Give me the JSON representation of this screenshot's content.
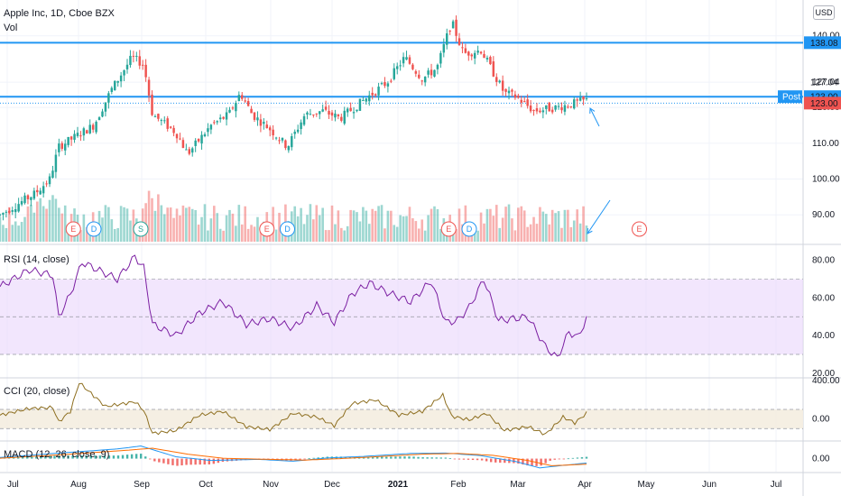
{
  "header": {
    "symbol_title": "Apple Inc, 1D, Cboe BZX",
    "volume_label": "Vol",
    "currency": "USD"
  },
  "panes": {
    "rsi_title": "RSI (14, close)",
    "cci_title": "CCI (20, close)",
    "macd_title": "MACD (12, 26, close, 9)"
  },
  "colors": {
    "up": "#26a69a",
    "down": "#ef5350",
    "level_line": "#2196f3",
    "rsi_line": "#7b1fa2",
    "rsi_band": "#e9d5fb",
    "cci_line": "#8d6e1f",
    "cci_band": "#f4ede0",
    "macd_line": "#2196f3",
    "signal_line": "#ff6d00",
    "last_price": "#ef5350"
  },
  "chart_data": {
    "type": "candlestick",
    "x_ticks": [
      "Jul",
      "Aug",
      "Sep",
      "Oct",
      "Nov",
      "Dec",
      "2021",
      "Feb",
      "Mar",
      "Apr",
      "May",
      "Jun",
      "Jul"
    ],
    "price_ticks": [
      "90.00",
      "100.00",
      "110.00",
      "120.00",
      "127.04",
      "140.00"
    ],
    "price_range": [
      82,
      150
    ],
    "level_lines": [
      138.08,
      123.0
    ],
    "price_tags": [
      {
        "label": "138.08",
        "value": 138.08,
        "kind": "level"
      },
      {
        "label": "127.04",
        "value": 127.04,
        "kind": "plain"
      },
      {
        "label": "123.00",
        "value": 123.0,
        "kind": "level"
      },
      {
        "label": "123.00",
        "value": 121.2,
        "kind": "last"
      }
    ],
    "post_label": "Post",
    "price_keyframes": [
      {
        "t": 0.0,
        "p": 90
      },
      {
        "t": 0.06,
        "p": 96
      },
      {
        "t": 0.085,
        "p": 100
      },
      {
        "t": 0.1,
        "p": 109
      },
      {
        "t": 0.13,
        "p": 112
      },
      {
        "t": 0.16,
        "p": 115
      },
      {
        "t": 0.19,
        "p": 125
      },
      {
        "t": 0.225,
        "p": 134
      },
      {
        "t": 0.245,
        "p": 132
      },
      {
        "t": 0.26,
        "p": 118
      },
      {
        "t": 0.3,
        "p": 113
      },
      {
        "t": 0.32,
        "p": 107
      },
      {
        "t": 0.36,
        "p": 115
      },
      {
        "t": 0.39,
        "p": 118
      },
      {
        "t": 0.41,
        "p": 124
      },
      {
        "t": 0.43,
        "p": 118
      },
      {
        "t": 0.46,
        "p": 114
      },
      {
        "t": 0.49,
        "p": 109
      },
      {
        "t": 0.52,
        "p": 118
      },
      {
        "t": 0.55,
        "p": 119
      },
      {
        "t": 0.58,
        "p": 117
      },
      {
        "t": 0.62,
        "p": 122
      },
      {
        "t": 0.66,
        "p": 127
      },
      {
        "t": 0.69,
        "p": 134
      },
      {
        "t": 0.72,
        "p": 128
      },
      {
        "t": 0.745,
        "p": 131
      },
      {
        "t": 0.77,
        "p": 144
      },
      {
        "t": 0.79,
        "p": 135
      },
      {
        "t": 0.82,
        "p": 136
      },
      {
        "t": 0.86,
        "p": 124
      },
      {
        "t": 0.88,
        "p": 123
      },
      {
        "t": 0.91,
        "p": 119
      },
      {
        "t": 0.95,
        "p": 120
      },
      {
        "t": 1.0,
        "p": 122
      }
    ],
    "earnings_events": [
      {
        "label": "E",
        "t": 0.125
      },
      {
        "label": "D",
        "t": 0.16
      },
      {
        "label": "S",
        "t": 0.24
      },
      {
        "label": "E",
        "t": 0.455
      },
      {
        "label": "D",
        "t": 0.49
      },
      {
        "label": "E",
        "t": 0.765
      },
      {
        "label": "D",
        "t": 0.8
      },
      {
        "label": "E",
        "t": 1.09
      }
    ],
    "rsi": {
      "ticks": [
        "80.00",
        "60.00",
        "40.00",
        "20.00"
      ],
      "range": [
        18,
        88
      ],
      "band": [
        30,
        70
      ],
      "keyframes": [
        {
          "t": 0.0,
          "v": 66
        },
        {
          "t": 0.05,
          "v": 75
        },
        {
          "t": 0.09,
          "v": 72
        },
        {
          "t": 0.1,
          "v": 50
        },
        {
          "t": 0.12,
          "v": 62
        },
        {
          "t": 0.14,
          "v": 79
        },
        {
          "t": 0.2,
          "v": 70
        },
        {
          "t": 0.23,
          "v": 82
        },
        {
          "t": 0.245,
          "v": 76
        },
        {
          "t": 0.26,
          "v": 46
        },
        {
          "t": 0.3,
          "v": 40
        },
        {
          "t": 0.34,
          "v": 52
        },
        {
          "t": 0.38,
          "v": 58
        },
        {
          "t": 0.42,
          "v": 46
        },
        {
          "t": 0.46,
          "v": 49
        },
        {
          "t": 0.5,
          "v": 44
        },
        {
          "t": 0.54,
          "v": 56
        },
        {
          "t": 0.57,
          "v": 47
        },
        {
          "t": 0.6,
          "v": 62
        },
        {
          "t": 0.63,
          "v": 68
        },
        {
          "t": 0.66,
          "v": 63
        },
        {
          "t": 0.7,
          "v": 58
        },
        {
          "t": 0.735,
          "v": 69
        },
        {
          "t": 0.76,
          "v": 47
        },
        {
          "t": 0.78,
          "v": 48
        },
        {
          "t": 0.8,
          "v": 55
        },
        {
          "t": 0.825,
          "v": 70
        },
        {
          "t": 0.85,
          "v": 48
        },
        {
          "t": 0.9,
          "v": 50
        },
        {
          "t": 0.93,
          "v": 34
        },
        {
          "t": 0.95,
          "v": 28
        },
        {
          "t": 0.97,
          "v": 42
        },
        {
          "t": 0.985,
          "v": 39
        },
        {
          "t": 1.0,
          "v": 49
        }
      ]
    },
    "cci": {
      "ticks": [
        "400.00",
        "0.00"
      ],
      "range": [
        -220,
        420
      ],
      "band": [
        -100,
        100
      ],
      "keyframes": [
        {
          "t": 0.0,
          "v": 40
        },
        {
          "t": 0.05,
          "v": 110
        },
        {
          "t": 0.09,
          "v": 120
        },
        {
          "t": 0.1,
          "v": -30
        },
        {
          "t": 0.12,
          "v": 80
        },
        {
          "t": 0.135,
          "v": 380
        },
        {
          "t": 0.18,
          "v": 130
        },
        {
          "t": 0.23,
          "v": 180
        },
        {
          "t": 0.245,
          "v": 90
        },
        {
          "t": 0.26,
          "v": -150
        },
        {
          "t": 0.3,
          "v": -120
        },
        {
          "t": 0.34,
          "v": 40
        },
        {
          "t": 0.38,
          "v": 80
        },
        {
          "t": 0.42,
          "v": -80
        },
        {
          "t": 0.46,
          "v": -110
        },
        {
          "t": 0.5,
          "v": 60
        },
        {
          "t": 0.54,
          "v": 20
        },
        {
          "t": 0.57,
          "v": -70
        },
        {
          "t": 0.6,
          "v": 160
        },
        {
          "t": 0.64,
          "v": 200
        },
        {
          "t": 0.68,
          "v": 40
        },
        {
          "t": 0.72,
          "v": 80
        },
        {
          "t": 0.755,
          "v": 250
        },
        {
          "t": 0.77,
          "v": 30
        },
        {
          "t": 0.8,
          "v": -10
        },
        {
          "t": 0.83,
          "v": 60
        },
        {
          "t": 0.86,
          "v": -120
        },
        {
          "t": 0.9,
          "v": -80
        },
        {
          "t": 0.93,
          "v": -160
        },
        {
          "t": 0.96,
          "v": 20
        },
        {
          "t": 0.98,
          "v": -40
        },
        {
          "t": 1.0,
          "v": 60
        }
      ]
    },
    "macd": {
      "ticks": [
        "0.00"
      ],
      "range": [
        -3.5,
        4.5
      ],
      "macd_keyframes": [
        {
          "t": 0.0,
          "v": 0.3
        },
        {
          "t": 0.1,
          "v": 1.5
        },
        {
          "t": 0.2,
          "v": 2.6
        },
        {
          "t": 0.24,
          "v": 3.4
        },
        {
          "t": 0.3,
          "v": 0.5
        },
        {
          "t": 0.36,
          "v": -0.5
        },
        {
          "t": 0.44,
          "v": -0.2
        },
        {
          "t": 0.5,
          "v": -0.7
        },
        {
          "t": 0.56,
          "v": 0.2
        },
        {
          "t": 0.62,
          "v": 0.6
        },
        {
          "t": 0.7,
          "v": 1.4
        },
        {
          "t": 0.76,
          "v": 1.5
        },
        {
          "t": 0.82,
          "v": 0.8
        },
        {
          "t": 0.88,
          "v": -0.8
        },
        {
          "t": 0.92,
          "v": -2.5
        },
        {
          "t": 0.96,
          "v": -1.8
        },
        {
          "t": 1.0,
          "v": -1.2
        }
      ],
      "signal_keyframes": [
        {
          "t": 0.0,
          "v": 0.1
        },
        {
          "t": 0.12,
          "v": 1.2
        },
        {
          "t": 0.22,
          "v": 2.3
        },
        {
          "t": 0.26,
          "v": 2.8
        },
        {
          "t": 0.32,
          "v": 1.2
        },
        {
          "t": 0.38,
          "v": 0.1
        },
        {
          "t": 0.46,
          "v": -0.2
        },
        {
          "t": 0.52,
          "v": -0.4
        },
        {
          "t": 0.58,
          "v": 0.0
        },
        {
          "t": 0.64,
          "v": 0.5
        },
        {
          "t": 0.72,
          "v": 1.2
        },
        {
          "t": 0.78,
          "v": 1.4
        },
        {
          "t": 0.84,
          "v": 0.9
        },
        {
          "t": 0.9,
          "v": -0.5
        },
        {
          "t": 0.94,
          "v": -1.9
        },
        {
          "t": 1.0,
          "v": -1.5
        }
      ]
    }
  }
}
